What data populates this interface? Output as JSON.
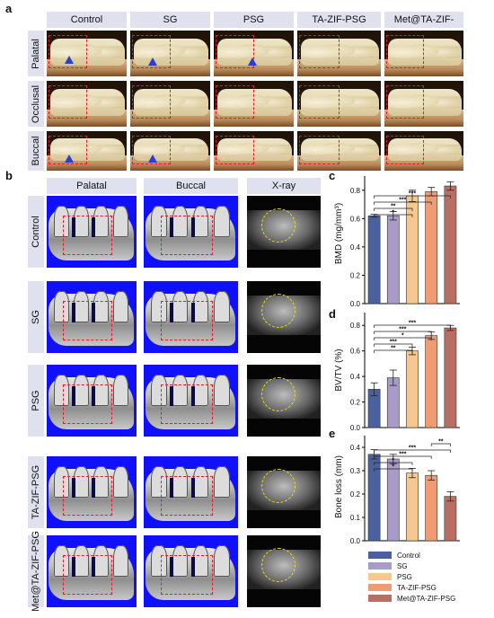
{
  "panels": {
    "a": "a",
    "b": "b",
    "c": "c",
    "d": "d",
    "e": "e"
  },
  "groups": [
    "Control",
    "SG",
    "PSG",
    "TA-ZIF-PSG",
    "Met@TA-ZIF-PSG"
  ],
  "panel_a": {
    "views": [
      "Palatal",
      "Occlusal",
      "Buccal"
    ]
  },
  "panel_b": {
    "columns": [
      "Palatal",
      "Buccal",
      "X-ray"
    ]
  },
  "colors": {
    "Control": "#4a61a0",
    "SG": "#a99bc7",
    "PSG": "#f6c88e",
    "TA-ZIF-PSG": "#ef9b74",
    "Met@TA-ZIF-PSG": "#b96e63"
  },
  "chart_data": [
    {
      "type": "bar",
      "panel": "c",
      "ylabel": "BMD (mg/mm³)",
      "categories": [
        "Control",
        "SG",
        "PSG",
        "TA-ZIF-PSG",
        "Met@TA-ZIF-PSG"
      ],
      "values": [
        0.62,
        0.62,
        0.76,
        0.79,
        0.83
      ],
      "errors": [
        0.01,
        0.03,
        0.04,
        0.03,
        0.03
      ],
      "ylim": [
        0.0,
        0.9
      ],
      "significance": [
        {
          "from": 0,
          "to": 2,
          "label": "*"
        },
        {
          "from": 0,
          "to": 2,
          "label": "**"
        },
        {
          "from": 0,
          "to": 3,
          "label": "***"
        },
        {
          "from": 0,
          "to": 4,
          "label": "***"
        }
      ]
    },
    {
      "type": "bar",
      "panel": "d",
      "ylabel": "BV/TV (%)",
      "categories": [
        "Control",
        "SG",
        "PSG",
        "TA-ZIF-PSG",
        "Met@TA-ZIF-PSG"
      ],
      "values": [
        0.3,
        0.39,
        0.6,
        0.72,
        0.78
      ],
      "errors": [
        0.05,
        0.06,
        0.03,
        0.03,
        0.02
      ],
      "ylim": [
        0.0,
        0.9
      ],
      "significance": [
        {
          "from": 0,
          "to": 2,
          "label": "**"
        },
        {
          "from": 0,
          "to": 2,
          "label": "***"
        },
        {
          "from": 0,
          "to": 3,
          "label": "*"
        },
        {
          "from": 0,
          "to": 3,
          "label": "***"
        },
        {
          "from": 0,
          "to": 4,
          "label": "***"
        }
      ]
    },
    {
      "type": "bar",
      "panel": "e",
      "ylabel": "Bone loss (mm)",
      "categories": [
        "Control",
        "SG",
        "PSG",
        "TA-ZIF-PSG",
        "Met@TA-ZIF-PSG"
      ],
      "values": [
        0.37,
        0.35,
        0.29,
        0.28,
        0.19
      ],
      "errors": [
        0.02,
        0.02,
        0.02,
        0.02,
        0.02
      ],
      "ylim": [
        0.0,
        0.45
      ],
      "significance": [
        {
          "from": 0,
          "to": 2,
          "label": "*"
        },
        {
          "from": 0,
          "to": 2,
          "label": "*"
        },
        {
          "from": 0,
          "to": 3,
          "label": "***"
        },
        {
          "from": 0,
          "to": 4,
          "label": "***"
        },
        {
          "from": 3,
          "to": 4,
          "label": "**"
        }
      ]
    }
  ],
  "legend": {
    "items": [
      "Control",
      "SG",
      "PSG",
      "TA-ZIF-PSG",
      "Met@TA-ZIF-PSG"
    ]
  }
}
